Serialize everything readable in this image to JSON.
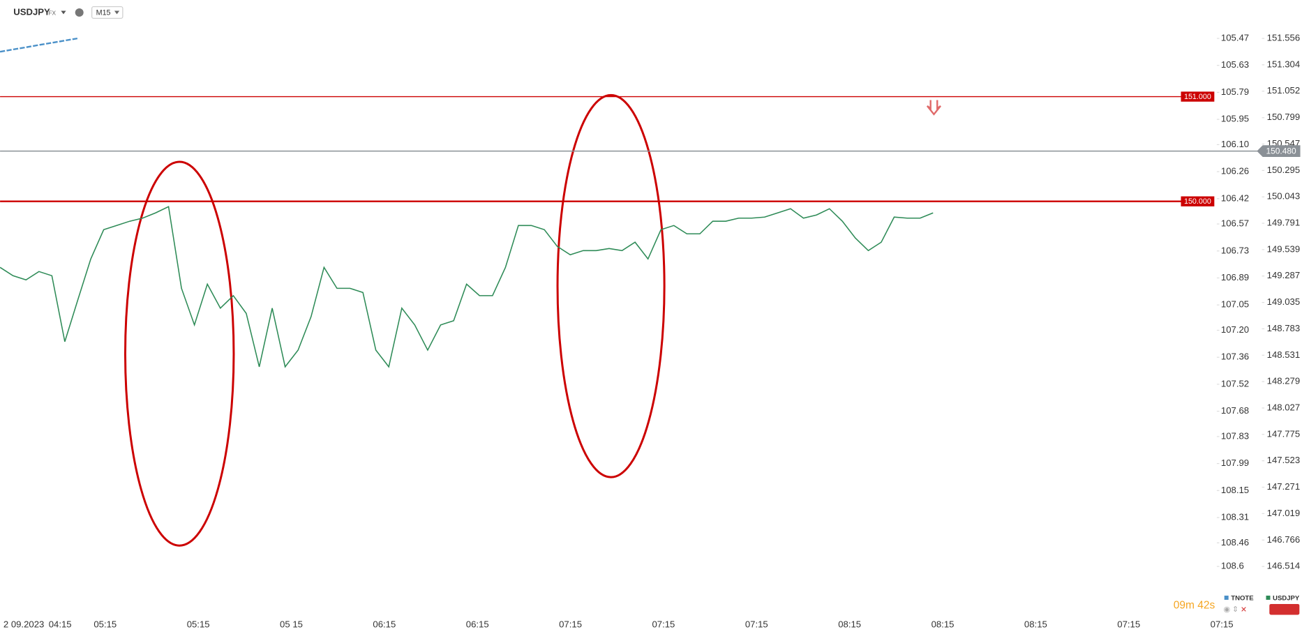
{
  "header": {
    "symbol": "USDJPY",
    "market": "FX",
    "timeframe": "M15",
    "countdown": "09m 42s"
  },
  "chart_data": {
    "type": "line",
    "x_labels": [
      "2 09.2023",
      "04:15",
      "05:15",
      "05:15",
      "05 15",
      "06:15",
      "06:15",
      "07:15",
      "07:15",
      "07:15",
      "08:15",
      "08:15",
      "08:15",
      "07:15",
      "07:15"
    ],
    "series": [
      {
        "name": "USDJPY",
        "color": "#2e8b57",
        "values": [
          149.37,
          149.29,
          149.25,
          149.33,
          149.29,
          148.66,
          149.06,
          149.45,
          149.73,
          149.77,
          149.81,
          149.84,
          149.89,
          149.95,
          149.17,
          148.82,
          149.21,
          148.98,
          149.1,
          148.93,
          148.42,
          148.98,
          148.42,
          148.58,
          148.9,
          149.37,
          149.17,
          149.17,
          149.13,
          148.58,
          148.42,
          148.98,
          148.82,
          148.58,
          148.82,
          148.86,
          149.21,
          149.1,
          149.1,
          149.37,
          149.77,
          149.77,
          149.73,
          149.57,
          149.49,
          149.53,
          149.53,
          149.55,
          149.53,
          149.61,
          149.45,
          149.73,
          149.77,
          149.69,
          149.69,
          149.81,
          149.81,
          149.84,
          149.84,
          149.85,
          149.89,
          149.93,
          149.84,
          149.87,
          149.93,
          149.81,
          149.65,
          149.53,
          149.61,
          149.85,
          149.84,
          149.84,
          149.89
        ]
      },
      {
        "name": "TNOTE",
        "color": "#4a90c8",
        "axis": "y2",
        "values": [
          105.549,
          105.536,
          105.523,
          105.509,
          105.496,
          105.483,
          105.47,
          null,
          null,
          null,
          null,
          null,
          null,
          null,
          null,
          null,
          null,
          null,
          null,
          null,
          null,
          null,
          null,
          null,
          null,
          null,
          null,
          null,
          null,
          null,
          null,
          null,
          null,
          null,
          null,
          null,
          null,
          null,
          null,
          null,
          null,
          null,
          null,
          null,
          null,
          null,
          null,
          null,
          null,
          null,
          null,
          null,
          null,
          null,
          null,
          null,
          null,
          null,
          null,
          null,
          null,
          null,
          null,
          null,
          null,
          null,
          null,
          null,
          null,
          null,
          null,
          null,
          null
        ]
      }
    ],
    "ylim": [
      146.108,
      151.843
    ],
    "yticks": [
      151.556,
      151.304,
      {
        "value": 151.052,
        "label": "151.052"
      },
      150.799,
      150.547,
      150.295,
      150.043,
      149.791,
      149.539,
      149.287,
      149.035,
      148.783,
      148.531,
      148.279,
      148.027,
      147.775,
      147.523,
      147.271,
      147.019,
      146.766,
      146.514
    ],
    "y2lim": [
      108.852,
      105.292
    ],
    "y2ticks": [
      105.47,
      105.63,
      105.79,
      105.95,
      {
        "value": 106.1,
        "label": "106.10"
      },
      106.26,
      106.42,
      106.57,
      106.73,
      106.89,
      107.05,
      {
        "value": 107.2,
        "label": "107.20"
      },
      107.36,
      107.52,
      107.68,
      107.83,
      107.99,
      108.15,
      108.31,
      108.46,
      108.6
    ],
    "levels": [
      {
        "value": 151,
        "label": "151.000",
        "color": "#cc0000"
      },
      {
        "value": 150,
        "label": "150.000",
        "color": "#cc0000"
      },
      {
        "value": 150.48,
        "label": "150.480",
        "color": "#8a9096"
      }
    ]
  }
}
